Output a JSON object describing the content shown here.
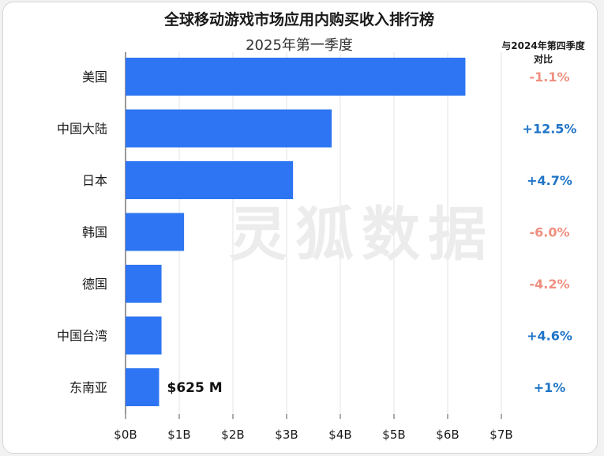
{
  "chart_data": {
    "type": "bar",
    "orientation": "horizontal",
    "title": "全球移动游戏市场应用内购买收入排行榜",
    "subtitle": "2025年第一季度",
    "delta_header_line1": "与2024年第四季度",
    "delta_header_line2": "对比",
    "categories": [
      "美国",
      "中国大陆",
      "日本",
      "韩国",
      "德国",
      "中国台湾",
      "东南亚"
    ],
    "values": [
      6.33,
      3.84,
      3.12,
      1.09,
      0.67,
      0.67,
      0.625
    ],
    "unit": "$B",
    "xlim": [
      0,
      7
    ],
    "xticks": [
      "$0B",
      "$1B",
      "$2B",
      "$3B",
      "$4B",
      "$5B",
      "$6B",
      "$7B"
    ],
    "grid": true,
    "data_labels": [
      {
        "category": "东南亚",
        "text": "$625 M"
      }
    ],
    "deltas": [
      "-1.1%",
      "+12.5%",
      "+4.7%",
      "-6.0%",
      "-4.2%",
      "+4.6%",
      "+1%"
    ],
    "watermark": "灵狐数据",
    "colors": {
      "bar": "#2d75f2",
      "positive": "#1f74c7",
      "negative": "#f08f7f",
      "grid": "#e3e3e3"
    }
  }
}
